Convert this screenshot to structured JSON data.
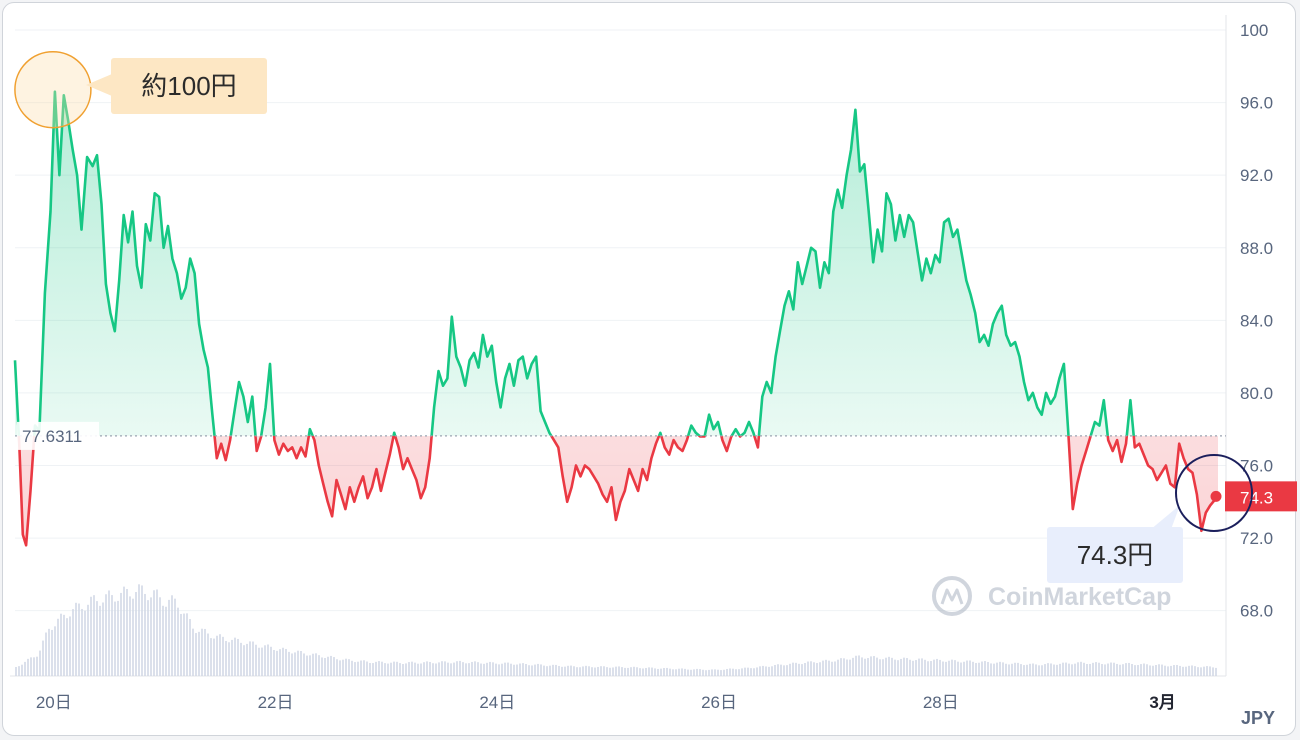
{
  "chart_data": {
    "type": "line",
    "title": "",
    "currency_label": "JPY",
    "y_ticks": [
      "100",
      "96.0",
      "92.0",
      "88.0",
      "84.0",
      "80.0",
      "76.0",
      "72.0",
      "68.0"
    ],
    "y_tick_values": [
      100,
      96,
      92,
      88,
      84,
      80,
      76,
      72,
      68
    ],
    "ylim": [
      64.4,
      100
    ],
    "x_ticks": [
      {
        "label": "20日",
        "x": 0.35
      },
      {
        "label": "22日",
        "x": 2.35
      },
      {
        "label": "24日",
        "x": 4.35
      },
      {
        "label": "26日",
        "x": 6.35
      },
      {
        "label": "28日",
        "x": 8.35
      },
      {
        "label": "3月",
        "x": 10.35
      }
    ],
    "xlim": [
      0,
      10.85
    ],
    "baseline": {
      "value": 77.6311,
      "label": "77.6311"
    },
    "current": {
      "value": 74.3,
      "label": "74.3"
    },
    "series": [
      {
        "name": "",
        "points": [
          [
            0.0,
            81.8
          ],
          [
            0.04,
            77.0
          ],
          [
            0.07,
            72.2
          ],
          [
            0.1,
            71.6
          ],
          [
            0.14,
            74.6
          ],
          [
            0.18,
            78.2
          ],
          [
            0.22,
            77.9
          ],
          [
            0.27,
            85.5
          ],
          [
            0.32,
            90.0
          ],
          [
            0.36,
            96.6
          ],
          [
            0.4,
            92.0
          ],
          [
            0.44,
            96.4
          ],
          [
            0.48,
            95.0
          ],
          [
            0.52,
            93.4
          ],
          [
            0.56,
            92.0
          ],
          [
            0.6,
            89.0
          ],
          [
            0.65,
            93.0
          ],
          [
            0.7,
            92.5
          ],
          [
            0.74,
            93.1
          ],
          [
            0.78,
            90.4
          ],
          [
            0.82,
            86.0
          ],
          [
            0.86,
            84.4
          ],
          [
            0.9,
            83.4
          ],
          [
            0.94,
            86.2
          ],
          [
            0.98,
            89.8
          ],
          [
            1.02,
            88.3
          ],
          [
            1.06,
            90.0
          ],
          [
            1.1,
            87.0
          ],
          [
            1.14,
            85.8
          ],
          [
            1.18,
            89.3
          ],
          [
            1.22,
            88.4
          ],
          [
            1.26,
            91.0
          ],
          [
            1.3,
            90.8
          ],
          [
            1.34,
            88.0
          ],
          [
            1.38,
            89.2
          ],
          [
            1.42,
            87.4
          ],
          [
            1.46,
            86.6
          ],
          [
            1.5,
            85.2
          ],
          [
            1.54,
            85.8
          ],
          [
            1.58,
            87.4
          ],
          [
            1.62,
            86.6
          ],
          [
            1.66,
            83.8
          ],
          [
            1.7,
            82.4
          ],
          [
            1.74,
            81.4
          ],
          [
            1.78,
            78.8
          ],
          [
            1.82,
            76.4
          ],
          [
            1.86,
            77.2
          ],
          [
            1.9,
            76.3
          ],
          [
            1.94,
            77.4
          ],
          [
            1.98,
            79.0
          ],
          [
            2.02,
            80.6
          ],
          [
            2.06,
            79.8
          ],
          [
            2.1,
            78.4
          ],
          [
            2.14,
            79.8
          ],
          [
            2.18,
            76.8
          ],
          [
            2.22,
            77.6
          ],
          [
            2.26,
            79.2
          ],
          [
            2.3,
            81.6
          ],
          [
            2.34,
            77.4
          ],
          [
            2.38,
            76.6
          ],
          [
            2.42,
            77.2
          ],
          [
            2.46,
            76.8
          ],
          [
            2.5,
            77.0
          ],
          [
            2.54,
            76.4
          ],
          [
            2.58,
            77.0
          ],
          [
            2.62,
            76.5
          ],
          [
            2.66,
            78.0
          ],
          [
            2.7,
            77.4
          ],
          [
            2.74,
            76.0
          ],
          [
            2.78,
            75.0
          ],
          [
            2.82,
            74.0
          ],
          [
            2.86,
            73.2
          ],
          [
            2.9,
            75.2
          ],
          [
            2.94,
            74.4
          ],
          [
            2.98,
            73.6
          ],
          [
            3.02,
            74.8
          ],
          [
            3.06,
            74.0
          ],
          [
            3.1,
            74.8
          ],
          [
            3.14,
            75.4
          ],
          [
            3.18,
            74.2
          ],
          [
            3.22,
            74.8
          ],
          [
            3.26,
            75.8
          ],
          [
            3.3,
            74.6
          ],
          [
            3.34,
            75.6
          ],
          [
            3.38,
            76.6
          ],
          [
            3.42,
            77.8
          ],
          [
            3.46,
            77.0
          ],
          [
            3.5,
            75.8
          ],
          [
            3.54,
            76.4
          ],
          [
            3.58,
            75.8
          ],
          [
            3.62,
            75.2
          ],
          [
            3.66,
            74.2
          ],
          [
            3.7,
            74.8
          ],
          [
            3.74,
            76.4
          ],
          [
            3.78,
            79.2
          ],
          [
            3.82,
            81.2
          ],
          [
            3.86,
            80.4
          ],
          [
            3.9,
            80.8
          ],
          [
            3.94,
            84.2
          ],
          [
            3.98,
            82.0
          ],
          [
            4.02,
            81.4
          ],
          [
            4.06,
            80.4
          ],
          [
            4.1,
            81.8
          ],
          [
            4.14,
            82.2
          ],
          [
            4.18,
            81.4
          ],
          [
            4.22,
            83.2
          ],
          [
            4.26,
            82.0
          ],
          [
            4.3,
            82.6
          ],
          [
            4.34,
            80.6
          ],
          [
            4.38,
            79.2
          ],
          [
            4.42,
            80.8
          ],
          [
            4.46,
            81.6
          ],
          [
            4.5,
            80.4
          ],
          [
            4.54,
            81.8
          ],
          [
            4.58,
            82.0
          ],
          [
            4.62,
            80.8
          ],
          [
            4.66,
            81.6
          ],
          [
            4.7,
            82.0
          ],
          [
            4.74,
            79.0
          ],
          [
            4.78,
            78.4
          ],
          [
            4.82,
            77.8
          ],
          [
            4.86,
            77.4
          ],
          [
            4.9,
            77.0
          ],
          [
            4.94,
            75.4
          ],
          [
            4.98,
            74.0
          ],
          [
            5.02,
            74.8
          ],
          [
            5.06,
            76.0
          ],
          [
            5.1,
            75.4
          ],
          [
            5.14,
            76.0
          ],
          [
            5.18,
            75.8
          ],
          [
            5.22,
            75.4
          ],
          [
            5.26,
            75.0
          ],
          [
            5.3,
            74.4
          ],
          [
            5.34,
            74.0
          ],
          [
            5.38,
            74.8
          ],
          [
            5.42,
            73.0
          ],
          [
            5.46,
            74.0
          ],
          [
            5.5,
            74.6
          ],
          [
            5.54,
            75.8
          ],
          [
            5.58,
            75.2
          ],
          [
            5.62,
            74.6
          ],
          [
            5.66,
            75.8
          ],
          [
            5.7,
            75.2
          ],
          [
            5.74,
            76.4
          ],
          [
            5.78,
            77.2
          ],
          [
            5.82,
            77.8
          ],
          [
            5.86,
            77.0
          ],
          [
            5.9,
            76.6
          ],
          [
            5.94,
            77.4
          ],
          [
            5.98,
            77.0
          ],
          [
            6.02,
            76.8
          ],
          [
            6.06,
            77.4
          ],
          [
            6.1,
            78.2
          ],
          [
            6.14,
            77.8
          ],
          [
            6.18,
            77.6
          ],
          [
            6.22,
            77.6
          ],
          [
            6.26,
            78.8
          ],
          [
            6.3,
            78.0
          ],
          [
            6.34,
            78.4
          ],
          [
            6.38,
            77.4
          ],
          [
            6.42,
            76.8
          ],
          [
            6.46,
            77.6
          ],
          [
            6.5,
            78.0
          ],
          [
            6.54,
            77.6
          ],
          [
            6.58,
            77.8
          ],
          [
            6.62,
            78.4
          ],
          [
            6.66,
            77.8
          ],
          [
            6.7,
            77.0
          ],
          [
            6.74,
            79.8
          ],
          [
            6.78,
            80.6
          ],
          [
            6.82,
            80.0
          ],
          [
            6.86,
            82.0
          ],
          [
            6.9,
            83.4
          ],
          [
            6.94,
            84.8
          ],
          [
            6.98,
            85.6
          ],
          [
            7.02,
            84.6
          ],
          [
            7.06,
            87.2
          ],
          [
            7.1,
            86.0
          ],
          [
            7.14,
            87.0
          ],
          [
            7.18,
            88.0
          ],
          [
            7.22,
            87.8
          ],
          [
            7.26,
            85.8
          ],
          [
            7.3,
            87.2
          ],
          [
            7.34,
            86.6
          ],
          [
            7.38,
            90.0
          ],
          [
            7.42,
            91.2
          ],
          [
            7.46,
            90.2
          ],
          [
            7.5,
            92.0
          ],
          [
            7.54,
            93.4
          ],
          [
            7.58,
            95.6
          ],
          [
            7.62,
            92.2
          ],
          [
            7.66,
            92.6
          ],
          [
            7.7,
            90.0
          ],
          [
            7.74,
            87.2
          ],
          [
            7.78,
            89.0
          ],
          [
            7.82,
            87.8
          ],
          [
            7.86,
            91.0
          ],
          [
            7.9,
            90.4
          ],
          [
            7.94,
            88.4
          ],
          [
            7.98,
            89.8
          ],
          [
            8.02,
            88.6
          ],
          [
            8.06,
            89.8
          ],
          [
            8.1,
            89.4
          ],
          [
            8.14,
            87.8
          ],
          [
            8.18,
            86.2
          ],
          [
            8.22,
            87.4
          ],
          [
            8.26,
            86.6
          ],
          [
            8.3,
            87.6
          ],
          [
            8.34,
            87.2
          ],
          [
            8.38,
            89.4
          ],
          [
            8.42,
            89.6
          ],
          [
            8.46,
            88.6
          ],
          [
            8.5,
            89.0
          ],
          [
            8.54,
            87.6
          ],
          [
            8.58,
            86.2
          ],
          [
            8.62,
            85.4
          ],
          [
            8.66,
            84.4
          ],
          [
            8.7,
            82.8
          ],
          [
            8.74,
            83.2
          ],
          [
            8.78,
            82.6
          ],
          [
            8.82,
            83.8
          ],
          [
            8.86,
            84.4
          ],
          [
            8.9,
            84.8
          ],
          [
            8.94,
            83.2
          ],
          [
            8.98,
            82.6
          ],
          [
            9.02,
            82.8
          ],
          [
            9.06,
            82.0
          ],
          [
            9.1,
            80.6
          ],
          [
            9.14,
            79.6
          ],
          [
            9.18,
            80.0
          ],
          [
            9.22,
            79.2
          ],
          [
            9.26,
            78.8
          ],
          [
            9.3,
            80.0
          ],
          [
            9.34,
            79.4
          ],
          [
            9.38,
            79.8
          ],
          [
            9.42,
            80.8
          ],
          [
            9.46,
            81.6
          ],
          [
            9.5,
            77.8
          ],
          [
            9.54,
            73.6
          ],
          [
            9.58,
            75.0
          ],
          [
            9.62,
            76.0
          ],
          [
            9.66,
            76.8
          ],
          [
            9.7,
            77.6
          ],
          [
            9.74,
            78.4
          ],
          [
            9.78,
            78.2
          ],
          [
            9.82,
            79.6
          ],
          [
            9.86,
            77.4
          ],
          [
            9.9,
            76.8
          ],
          [
            9.94,
            77.4
          ],
          [
            9.98,
            76.2
          ],
          [
            10.02,
            77.2
          ],
          [
            10.06,
            79.6
          ],
          [
            10.1,
            77.0
          ],
          [
            10.14,
            77.2
          ],
          [
            10.18,
            76.6
          ],
          [
            10.22,
            76.0
          ],
          [
            10.26,
            75.8
          ],
          [
            10.3,
            75.2
          ],
          [
            10.34,
            75.6
          ],
          [
            10.38,
            76.0
          ],
          [
            10.42,
            75.0
          ],
          [
            10.46,
            74.8
          ],
          [
            10.5,
            77.2
          ],
          [
            10.54,
            76.4
          ],
          [
            10.58,
            75.8
          ],
          [
            10.62,
            75.6
          ],
          [
            10.66,
            74.4
          ],
          [
            10.7,
            72.4
          ],
          [
            10.74,
            73.4
          ],
          [
            10.78,
            73.8
          ],
          [
            10.82,
            74.1
          ],
          [
            10.85,
            74.3
          ]
        ]
      }
    ],
    "volume": [
      [
        0.0,
        0.1
      ],
      [
        0.2,
        0.25
      ],
      [
        0.3,
        0.55
      ],
      [
        0.5,
        0.75
      ],
      [
        0.7,
        0.86
      ],
      [
        0.9,
        0.92
      ],
      [
        1.0,
        0.95
      ],
      [
        1.1,
        0.98
      ],
      [
        1.25,
        0.93
      ],
      [
        1.35,
        0.85
      ],
      [
        1.45,
        0.85
      ],
      [
        1.6,
        0.55
      ],
      [
        1.8,
        0.45
      ],
      [
        2.0,
        0.4
      ],
      [
        2.2,
        0.35
      ],
      [
        2.4,
        0.3
      ],
      [
        2.6,
        0.26
      ],
      [
        2.8,
        0.22
      ],
      [
        3.0,
        0.18
      ],
      [
        3.2,
        0.16
      ],
      [
        3.5,
        0.15
      ],
      [
        4.0,
        0.16
      ],
      [
        4.5,
        0.14
      ],
      [
        5.0,
        0.11
      ],
      [
        5.5,
        0.1
      ],
      [
        6.0,
        0.08
      ],
      [
        6.3,
        0.07
      ],
      [
        6.6,
        0.09
      ],
      [
        7.0,
        0.14
      ],
      [
        7.4,
        0.18
      ],
      [
        7.6,
        0.22
      ],
      [
        7.9,
        0.2
      ],
      [
        8.3,
        0.18
      ],
      [
        8.7,
        0.16
      ],
      [
        9.2,
        0.13
      ],
      [
        9.6,
        0.15
      ],
      [
        10.0,
        0.14
      ],
      [
        10.4,
        0.12
      ],
      [
        10.85,
        0.1
      ]
    ],
    "annotations": [
      {
        "label": "約100円",
        "style": "orange-callout"
      },
      {
        "label": "74.3円",
        "style": "blue-callout"
      }
    ],
    "watermark": "CoinMarketCap",
    "colors": {
      "up": "#16c784",
      "down": "#ea3943",
      "grid": "#eff2f5",
      "axis_text": "#58667e",
      "orange_callout_bg": "#fde7c4",
      "orange_circle": "#f0a030",
      "blue_callout_bg": "#e8eefc",
      "navy_circle": "#1b1f5c"
    }
  }
}
